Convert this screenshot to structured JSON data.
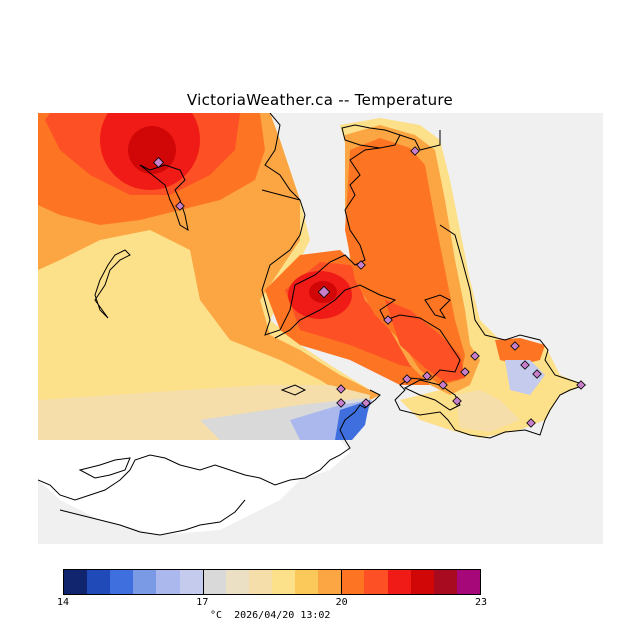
{
  "title": "VictoriaWeather.ca  --  Temperature",
  "footer": {
    "unit": "°C",
    "timestamp": "2026/04/20 13:02"
  },
  "colorbar": {
    "colors": [
      "#10256e",
      "#1f4ab8",
      "#3f6fde",
      "#7b9ae6",
      "#aab8ee",
      "#c5cbec",
      "#d9d9d9",
      "#ebe0c4",
      "#f5deaa",
      "#fde08a",
      "#fbc95a",
      "#fba543",
      "#fd7523",
      "#fd5125",
      "#f01b16",
      "#d10707",
      "#a80a20",
      "#a6087a"
    ],
    "min": 14,
    "max": 23,
    "tick_labels": [
      "14",
      "17",
      "20",
      "23"
    ],
    "tick_values": [
      14,
      17,
      20,
      23
    ]
  },
  "map": {
    "background": "#f0f0f0",
    "water_unplotted": "#ffffff",
    "station_color": "#c77fc9"
  }
}
